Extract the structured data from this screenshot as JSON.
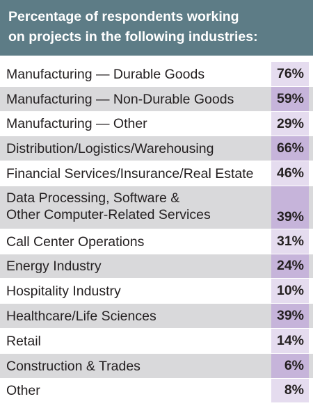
{
  "chart_data": {
    "type": "table",
    "title_lines": [
      "Percentage of respondents working",
      "on projects in the following industries:"
    ],
    "rows": [
      {
        "label_lines": [
          "Manufacturing — Durable Goods"
        ],
        "value": 76,
        "value_text": "76%"
      },
      {
        "label_lines": [
          "Manufacturing — Non-Durable Goods"
        ],
        "value": 59,
        "value_text": "59%"
      },
      {
        "label_lines": [
          "Manufacturing — Other"
        ],
        "value": 29,
        "value_text": "29%"
      },
      {
        "label_lines": [
          "Distribution/Logistics/Warehousing"
        ],
        "value": 66,
        "value_text": "66%"
      },
      {
        "label_lines": [
          "Financial Services/Insurance/Real Estate"
        ],
        "value": 46,
        "value_text": "46%"
      },
      {
        "label_lines": [
          "Data Processing, Software &",
          "Other Computer-Related Services"
        ],
        "value": 39,
        "value_text": "39%"
      },
      {
        "label_lines": [
          "Call Center Operations"
        ],
        "value": 31,
        "value_text": "31%"
      },
      {
        "label_lines": [
          "Energy Industry"
        ],
        "value": 24,
        "value_text": "24%"
      },
      {
        "label_lines": [
          "Hospitality Industry"
        ],
        "value": 10,
        "value_text": "10%"
      },
      {
        "label_lines": [
          "Healthcare/Life Sciences"
        ],
        "value": 39,
        "value_text": "39%"
      },
      {
        "label_lines": [
          "Retail"
        ],
        "value": 14,
        "value_text": "14%"
      },
      {
        "label_lines": [
          "Construction & Trades"
        ],
        "value": 6,
        "value_text": "6%"
      },
      {
        "label_lines": [
          "Other"
        ],
        "value": 8,
        "value_text": "8%"
      }
    ],
    "colors": {
      "header": "#5d7c86",
      "row_alt": "#d9d9db",
      "value_cell": "#e5dcef",
      "value_cell_alt": "#c6b4da"
    }
  }
}
